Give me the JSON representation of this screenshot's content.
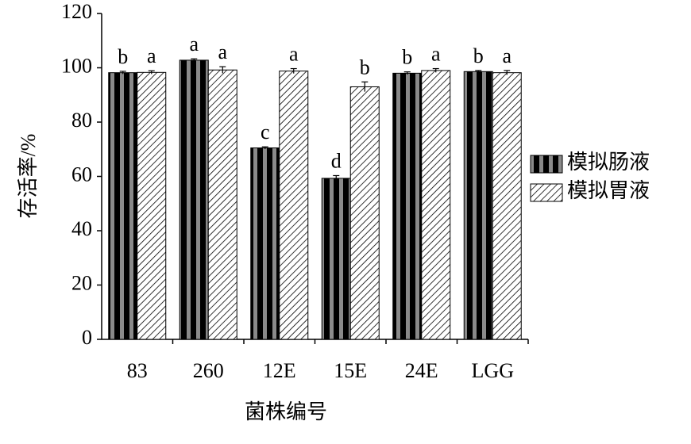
{
  "chart_data": {
    "type": "bar",
    "xlabel": "菌株编号",
    "ylabel": "存活率/%",
    "categories": [
      "83",
      "260",
      "12E",
      "15E",
      "24E",
      "LGG"
    ],
    "series": [
      {
        "name": "模拟肠液",
        "color": "#000000",
        "pattern": "vertical-stripes",
        "values": [
          98.2,
          102.8,
          70.5,
          59.3,
          98.0,
          98.6
        ],
        "errors": [
          0.5,
          0.5,
          0.4,
          1.0,
          0.5,
          0.4
        ],
        "letters": [
          "b",
          "a",
          "c",
          "d",
          "b",
          "b"
        ]
      },
      {
        "name": "模拟胃液",
        "color": "#000000",
        "pattern": "diagonal-hatch",
        "values": [
          98.3,
          99.2,
          98.8,
          93.0,
          99.0,
          98.2
        ],
        "errors": [
          0.6,
          1.2,
          0.9,
          1.8,
          0.7,
          0.8
        ],
        "letters": [
          "a",
          "a",
          "a",
          "b",
          "a",
          "a"
        ]
      }
    ],
    "ylim": [
      0,
      120
    ],
    "yticks": [
      0,
      20,
      40,
      60,
      80,
      100,
      120
    ],
    "grid": false,
    "legend": "right"
  }
}
